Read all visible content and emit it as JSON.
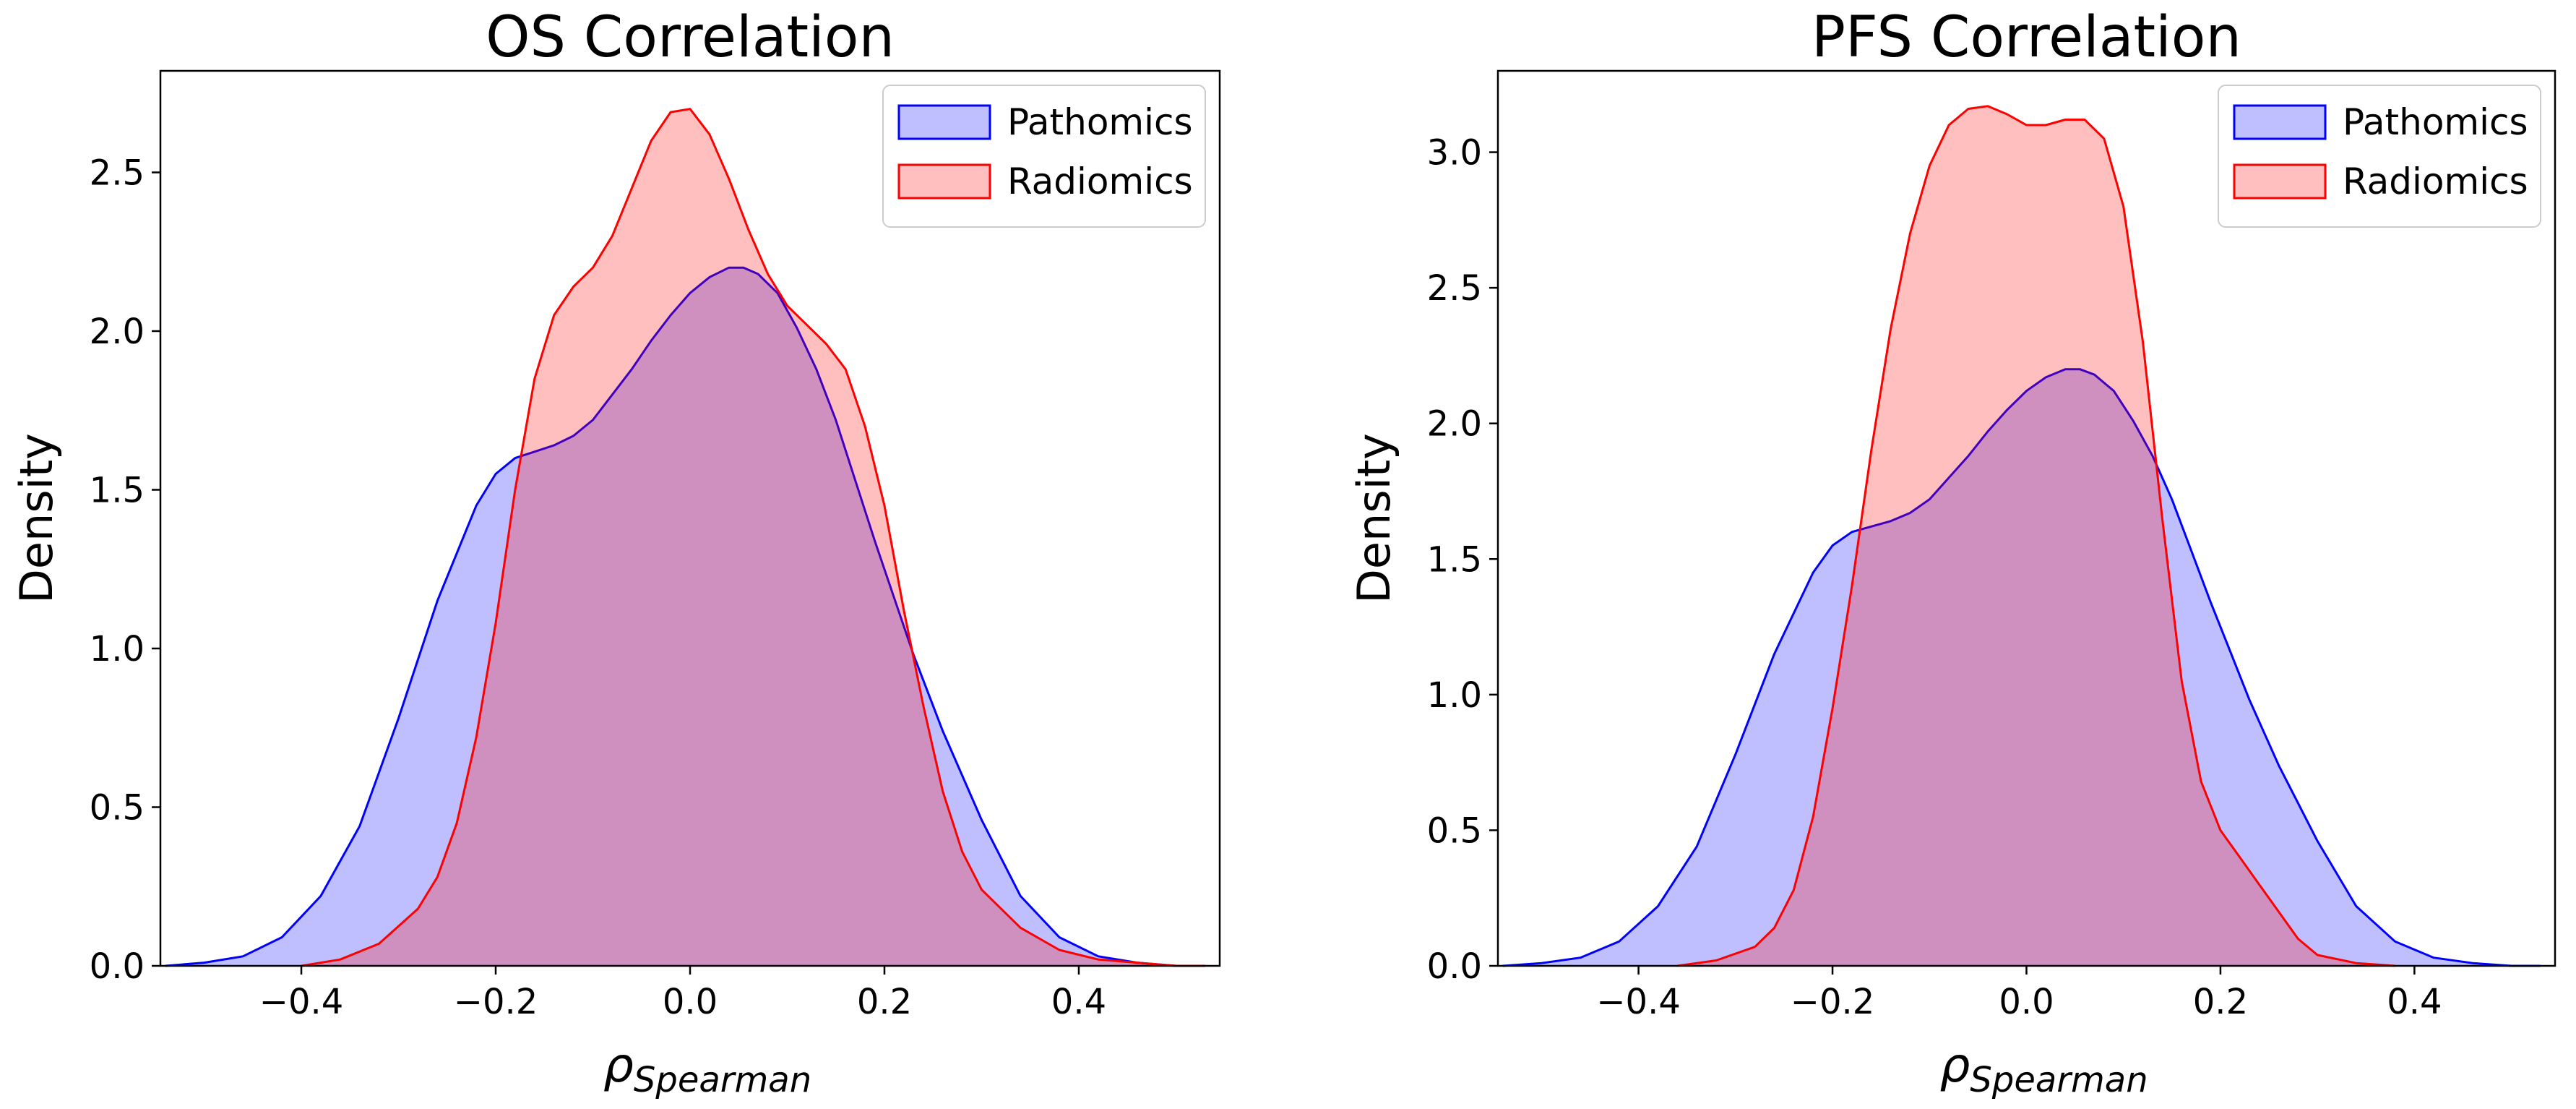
{
  "chart_data": [
    {
      "type": "area",
      "title": "OS Correlation",
      "xlabel_symbol": "ρ",
      "xlabel_subscript": "Spearman",
      "ylabel": "Density",
      "xlim": [
        -0.545,
        0.545
      ],
      "ylim": [
        0,
        2.82
      ],
      "xticks": [
        -0.4,
        -0.2,
        0.0,
        0.2,
        0.4
      ],
      "xtick_labels": [
        "−0.4",
        "−0.2",
        "0.0",
        "0.2",
        "0.4"
      ],
      "yticks": [
        0.0,
        0.5,
        1.0,
        1.5,
        2.0,
        2.5
      ],
      "ytick_labels": [
        "0.0",
        "0.5",
        "1.0",
        "1.5",
        "2.0",
        "2.5"
      ],
      "legend_position": "top-right",
      "series": [
        {
          "name": "Pathomics",
          "color": "#0000ff",
          "fill": "#0000ff",
          "fill_opacity": 0.25,
          "x": [
            -0.54,
            -0.5,
            -0.46,
            -0.42,
            -0.38,
            -0.34,
            -0.3,
            -0.26,
            -0.22,
            -0.2,
            -0.18,
            -0.16,
            -0.14,
            -0.12,
            -0.1,
            -0.08,
            -0.06,
            -0.04,
            -0.02,
            0.0,
            0.02,
            0.04,
            0.055,
            0.07,
            0.09,
            0.11,
            0.13,
            0.15,
            0.17,
            0.19,
            0.21,
            0.23,
            0.26,
            0.3,
            0.34,
            0.38,
            0.42,
            0.46,
            0.5,
            0.53
          ],
          "y": [
            0.0,
            0.01,
            0.03,
            0.09,
            0.22,
            0.44,
            0.78,
            1.15,
            1.45,
            1.55,
            1.6,
            1.62,
            1.64,
            1.67,
            1.72,
            1.8,
            1.88,
            1.97,
            2.05,
            2.12,
            2.17,
            2.2,
            2.2,
            2.18,
            2.12,
            2.01,
            1.88,
            1.72,
            1.53,
            1.34,
            1.16,
            0.98,
            0.74,
            0.46,
            0.22,
            0.09,
            0.03,
            0.01,
            0.0,
            0.0
          ]
        },
        {
          "name": "Radiomics",
          "color": "#ff0000",
          "fill": "#ff0000",
          "fill_opacity": 0.25,
          "x": [
            -0.4,
            -0.36,
            -0.32,
            -0.28,
            -0.26,
            -0.24,
            -0.22,
            -0.2,
            -0.18,
            -0.16,
            -0.14,
            -0.12,
            -0.1,
            -0.08,
            -0.06,
            -0.04,
            -0.02,
            0.0,
            0.02,
            0.04,
            0.06,
            0.08,
            0.1,
            0.12,
            0.14,
            0.16,
            0.18,
            0.2,
            0.22,
            0.24,
            0.26,
            0.28,
            0.3,
            0.34,
            0.38,
            0.42,
            0.46,
            0.5,
            0.53
          ],
          "y": [
            0.0,
            0.02,
            0.07,
            0.18,
            0.28,
            0.45,
            0.72,
            1.08,
            1.5,
            1.85,
            2.05,
            2.14,
            2.2,
            2.3,
            2.45,
            2.6,
            2.69,
            2.7,
            2.62,
            2.48,
            2.32,
            2.18,
            2.08,
            2.02,
            1.96,
            1.88,
            1.7,
            1.45,
            1.12,
            0.82,
            0.55,
            0.36,
            0.24,
            0.12,
            0.05,
            0.02,
            0.01,
            0.0,
            0.0
          ]
        }
      ]
    },
    {
      "type": "area",
      "title": "PFS Correlation",
      "xlabel_symbol": "ρ",
      "xlabel_subscript": "Spearman",
      "ylabel": "Density",
      "xlim": [
        -0.545,
        0.545
      ],
      "ylim": [
        0,
        3.3
      ],
      "xticks": [
        -0.4,
        -0.2,
        0.0,
        0.2,
        0.4
      ],
      "xtick_labels": [
        "−0.4",
        "−0.2",
        "0.0",
        "0.2",
        "0.4"
      ],
      "yticks": [
        0.0,
        0.5,
        1.0,
        1.5,
        2.0,
        2.5,
        3.0
      ],
      "ytick_labels": [
        "0.0",
        "0.5",
        "1.0",
        "1.5",
        "2.0",
        "2.5",
        "3.0"
      ],
      "legend_position": "top-right",
      "series": [
        {
          "name": "Pathomics",
          "color": "#0000ff",
          "fill": "#0000ff",
          "fill_opacity": 0.25,
          "x": [
            -0.54,
            -0.5,
            -0.46,
            -0.42,
            -0.38,
            -0.34,
            -0.3,
            -0.26,
            -0.22,
            -0.2,
            -0.18,
            -0.16,
            -0.14,
            -0.12,
            -0.1,
            -0.08,
            -0.06,
            -0.04,
            -0.02,
            0.0,
            0.02,
            0.04,
            0.055,
            0.07,
            0.09,
            0.11,
            0.13,
            0.15,
            0.17,
            0.19,
            0.21,
            0.23,
            0.26,
            0.3,
            0.34,
            0.38,
            0.42,
            0.46,
            0.5,
            0.53
          ],
          "y": [
            0.0,
            0.01,
            0.03,
            0.09,
            0.22,
            0.44,
            0.78,
            1.15,
            1.45,
            1.55,
            1.6,
            1.62,
            1.64,
            1.67,
            1.72,
            1.8,
            1.88,
            1.97,
            2.05,
            2.12,
            2.17,
            2.2,
            2.2,
            2.18,
            2.12,
            2.01,
            1.88,
            1.72,
            1.53,
            1.34,
            1.16,
            0.98,
            0.74,
            0.46,
            0.22,
            0.09,
            0.03,
            0.01,
            0.0,
            0.0
          ]
        },
        {
          "name": "Radiomics",
          "color": "#ff0000",
          "fill": "#ff0000",
          "fill_opacity": 0.25,
          "x": [
            -0.36,
            -0.32,
            -0.28,
            -0.26,
            -0.24,
            -0.22,
            -0.2,
            -0.18,
            -0.16,
            -0.14,
            -0.12,
            -0.1,
            -0.08,
            -0.06,
            -0.04,
            -0.02,
            0.0,
            0.02,
            0.04,
            0.06,
            0.08,
            0.1,
            0.12,
            0.14,
            0.16,
            0.18,
            0.2,
            0.22,
            0.24,
            0.26,
            0.28,
            0.3,
            0.34,
            0.38
          ],
          "y": [
            0.0,
            0.02,
            0.07,
            0.14,
            0.28,
            0.55,
            0.95,
            1.4,
            1.9,
            2.35,
            2.7,
            2.95,
            3.1,
            3.16,
            3.17,
            3.14,
            3.1,
            3.1,
            3.12,
            3.12,
            3.05,
            2.8,
            2.3,
            1.65,
            1.05,
            0.68,
            0.5,
            0.4,
            0.3,
            0.2,
            0.1,
            0.04,
            0.01,
            0.0
          ]
        }
      ]
    }
  ]
}
